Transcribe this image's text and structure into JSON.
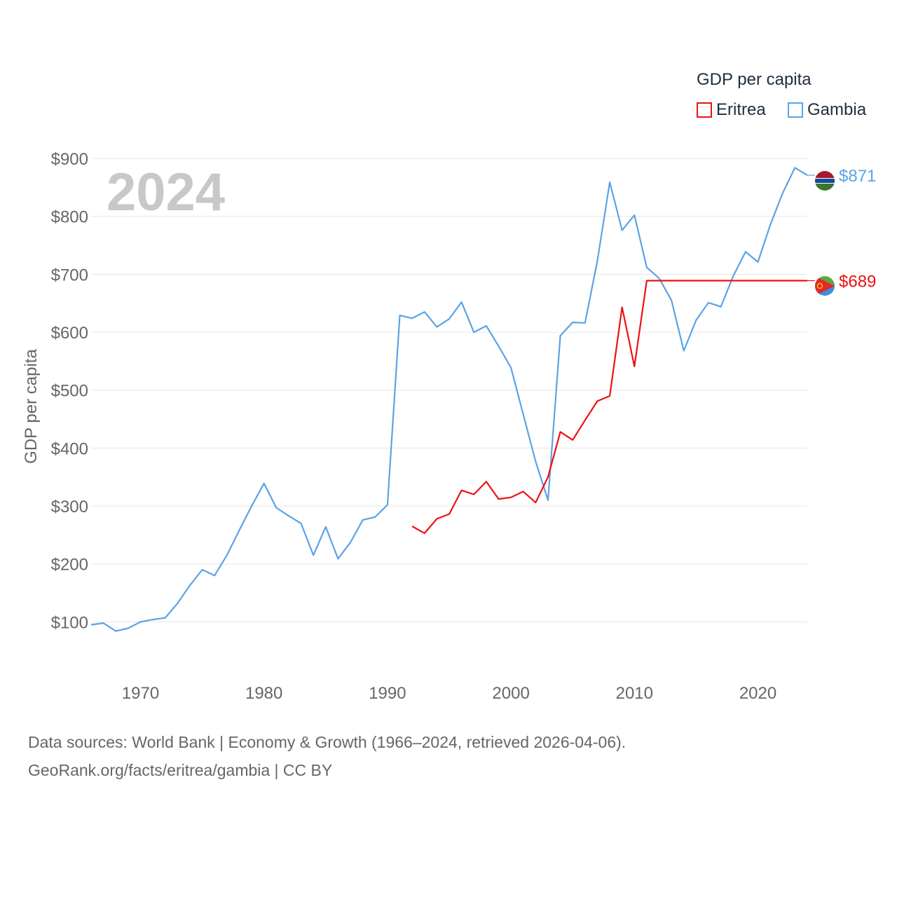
{
  "year_label": "2024",
  "legend": {
    "title": "GDP per capita",
    "items": [
      {
        "label": "Eritrea",
        "color": "#ee1111"
      },
      {
        "label": "Gambia",
        "color": "#5ba3e6"
      }
    ]
  },
  "footer": {
    "line1": "Data sources: World Bank | Economy & Growth (1966–2024, retrieved 2026-04-06).",
    "line2": "GeoRank.org/facts/eritrea/gambia | CC BY"
  },
  "chart_data": {
    "type": "line",
    "title": "",
    "xlabel": "",
    "ylabel": "GDP per capita",
    "xlim": [
      1966,
      2024
    ],
    "ylim": [
      40,
      940
    ],
    "y_ticks": [
      {
        "value": 100,
        "label": "$100"
      },
      {
        "value": 200,
        "label": "$200"
      },
      {
        "value": 300,
        "label": "$300"
      },
      {
        "value": 400,
        "label": "$400"
      },
      {
        "value": 500,
        "label": "$500"
      },
      {
        "value": 600,
        "label": "$600"
      },
      {
        "value": 700,
        "label": "$700"
      },
      {
        "value": 800,
        "label": "$800"
      },
      {
        "value": 900,
        "label": "$900"
      }
    ],
    "x_ticks": [
      {
        "value": 1970,
        "label": "1970"
      },
      {
        "value": 1980,
        "label": "1980"
      },
      {
        "value": 1990,
        "label": "1990"
      },
      {
        "value": 2000,
        "label": "2000"
      },
      {
        "value": 2010,
        "label": "2010"
      },
      {
        "value": 2020,
        "label": "2020"
      }
    ],
    "grid": true,
    "series": [
      {
        "name": "Gambia",
        "color": "#5ba3e6",
        "end_label": "$871",
        "end_value": 871,
        "flag": "gambia-flag",
        "points": [
          [
            1966,
            95
          ],
          [
            1967,
            98
          ],
          [
            1968,
            84
          ],
          [
            1969,
            89
          ],
          [
            1970,
            100
          ],
          [
            1971,
            104
          ],
          [
            1972,
            107
          ],
          [
            1973,
            132
          ],
          [
            1974,
            163
          ],
          [
            1975,
            190
          ],
          [
            1976,
            180
          ],
          [
            1977,
            215
          ],
          [
            1978,
            258
          ],
          [
            1979,
            300
          ],
          [
            1980,
            339
          ],
          [
            1981,
            297
          ],
          [
            1982,
            283
          ],
          [
            1983,
            270
          ],
          [
            1984,
            215
          ],
          [
            1985,
            264
          ],
          [
            1986,
            209
          ],
          [
            1987,
            237
          ],
          [
            1988,
            276
          ],
          [
            1989,
            281
          ],
          [
            1990,
            302
          ],
          [
            1991,
            629
          ],
          [
            1992,
            624
          ],
          [
            1993,
            635
          ],
          [
            1994,
            609
          ],
          [
            1995,
            623
          ],
          [
            1996,
            652
          ],
          [
            1997,
            600
          ],
          [
            1998,
            611
          ],
          [
            1999,
            576
          ],
          [
            2000,
            539
          ],
          [
            2001,
            458
          ],
          [
            2002,
            377
          ],
          [
            2003,
            310
          ],
          [
            2004,
            594
          ],
          [
            2005,
            617
          ],
          [
            2006,
            616
          ],
          [
            2007,
            723
          ],
          [
            2008,
            859
          ],
          [
            2009,
            776
          ],
          [
            2010,
            802
          ],
          [
            2011,
            712
          ],
          [
            2012,
            693
          ],
          [
            2013,
            655
          ],
          [
            2014,
            568
          ],
          [
            2015,
            621
          ],
          [
            2016,
            651
          ],
          [
            2017,
            644
          ],
          [
            2018,
            697
          ],
          [
            2019,
            739
          ],
          [
            2020,
            721
          ],
          [
            2021,
            785
          ],
          [
            2022,
            840
          ],
          [
            2023,
            884
          ],
          [
            2024,
            871
          ]
        ]
      },
      {
        "name": "Eritrea",
        "color": "#ee1111",
        "end_label": "$689",
        "end_value": 689,
        "flag": "eritrea-flag",
        "points": [
          [
            1992,
            265
          ],
          [
            1993,
            253
          ],
          [
            1994,
            278
          ],
          [
            1995,
            286
          ],
          [
            1996,
            327
          ],
          [
            1997,
            320
          ],
          [
            1998,
            342
          ],
          [
            1999,
            312
          ],
          [
            2000,
            315
          ],
          [
            2001,
            325
          ],
          [
            2002,
            306
          ],
          [
            2003,
            350
          ],
          [
            2004,
            428
          ],
          [
            2005,
            414
          ],
          [
            2006,
            448
          ],
          [
            2007,
            481
          ],
          [
            2008,
            490
          ],
          [
            2009,
            643
          ],
          [
            2010,
            541
          ],
          [
            2011,
            689
          ],
          [
            2012,
            689
          ],
          [
            2013,
            689
          ],
          [
            2014,
            689
          ],
          [
            2015,
            689
          ],
          [
            2016,
            689
          ],
          [
            2017,
            689
          ],
          [
            2018,
            689
          ],
          [
            2019,
            689
          ],
          [
            2020,
            689
          ],
          [
            2021,
            689
          ],
          [
            2022,
            689
          ],
          [
            2023,
            689
          ],
          [
            2024,
            689
          ]
        ]
      }
    ]
  }
}
